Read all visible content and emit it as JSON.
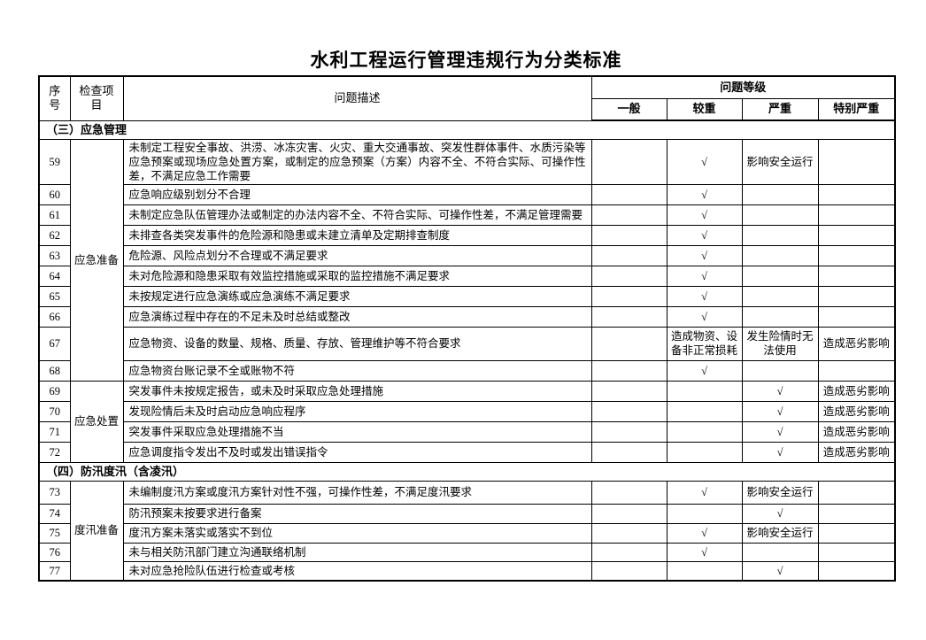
{
  "page": {
    "title": "水利工程运行管理违规行为分类标准"
  },
  "table": {
    "headers": {
      "no": "序号",
      "item": "检查项目",
      "desc": "问题描述",
      "level_group": "问题等级",
      "levels": [
        "一般",
        "较重",
        "严重",
        "特别严重"
      ]
    },
    "check_mark": "√",
    "sections": [
      {
        "label": "（三）应急管理",
        "groups": [
          {
            "item": "应急准备",
            "rows": [
              {
                "no": "59",
                "desc": "未制定工程安全事故、洪涝、冰冻灾害、火灾、重大交通事故、突发性群体事件、水质污染等应急预案或现场应急处置方案，或制定的应急预案（方案）内容不全、不符合实际、可操作性差，不满足应急工作需要",
                "levels": [
                  "",
                  "√",
                  "影响安全运行",
                  ""
                ]
              },
              {
                "no": "60",
                "desc": "应急响应级别划分不合理",
                "levels": [
                  "",
                  "√",
                  "",
                  ""
                ]
              },
              {
                "no": "61",
                "desc": "未制定应急队伍管理办法或制定的办法内容不全、不符合实际、可操作性差，不满足管理需要",
                "levels": [
                  "",
                  "√",
                  "",
                  ""
                ]
              },
              {
                "no": "62",
                "desc": "未排查各类突发事件的危险源和隐患或未建立清单及定期排查制度",
                "levels": [
                  "",
                  "√",
                  "",
                  ""
                ]
              },
              {
                "no": "63",
                "desc": "危险源、风险点划分不合理或不满足要求",
                "levels": [
                  "",
                  "√",
                  "",
                  ""
                ]
              },
              {
                "no": "64",
                "desc": "未对危险源和隐患采取有效监控措施或采取的监控措施不满足要求",
                "levels": [
                  "",
                  "√",
                  "",
                  ""
                ]
              },
              {
                "no": "65",
                "desc": "未按规定进行应急演练或应急演练不满足要求",
                "levels": [
                  "",
                  "√",
                  "",
                  ""
                ]
              },
              {
                "no": "66",
                "desc": "应急演练过程中存在的不足未及时总结或整改",
                "levels": [
                  "",
                  "√",
                  "",
                  ""
                ]
              },
              {
                "no": "67",
                "desc": "应急物资、设备的数量、规格、质量、存放、管理维护等不符合要求",
                "levels": [
                  "",
                  "造成物资、设备非正常损耗",
                  "发生险情时无法使用",
                  "造成恶劣影响"
                ]
              },
              {
                "no": "68",
                "desc": "应急物资台账记录不全或账物不符",
                "levels": [
                  "",
                  "√",
                  "",
                  ""
                ]
              }
            ]
          },
          {
            "item": "应急处置",
            "rows": [
              {
                "no": "69",
                "desc": "突发事件未按规定报告，或未及时采取应急处理措施",
                "levels": [
                  "",
                  "",
                  "√",
                  "造成恶劣影响"
                ]
              },
              {
                "no": "70",
                "desc": "发现险情后未及时启动应急响应程序",
                "levels": [
                  "",
                  "",
                  "√",
                  "造成恶劣影响"
                ]
              },
              {
                "no": "71",
                "desc": "突发事件采取应急处理措施不当",
                "levels": [
                  "",
                  "",
                  "√",
                  "造成恶劣影响"
                ]
              },
              {
                "no": "72",
                "desc": "应急调度指令发出不及时或发出错误指令",
                "levels": [
                  "",
                  "",
                  "√",
                  "造成恶劣影响"
                ]
              }
            ]
          }
        ]
      },
      {
        "label": "（四）防汛度汛（含凌汛）",
        "groups": [
          {
            "item": "度汛准备",
            "rows": [
              {
                "no": "73",
                "desc": "未编制度汛方案或度汛方案针对性不强，可操作性差，不满足度汛要求",
                "levels": [
                  "",
                  "√",
                  "影响安全运行",
                  ""
                ]
              },
              {
                "no": "74",
                "desc": "防汛预案未按要求进行备案",
                "levels": [
                  "",
                  "",
                  "√",
                  ""
                ]
              },
              {
                "no": "75",
                "desc": "度汛方案未落实或落实不到位",
                "levels": [
                  "",
                  "√",
                  "影响安全运行",
                  ""
                ]
              },
              {
                "no": "76",
                "desc": "未与相关防汛部门建立沟通联络机制",
                "levels": [
                  "",
                  "√",
                  "",
                  ""
                ]
              },
              {
                "no": "77",
                "desc": "未对应急抢险队伍进行检查或考核",
                "levels": [
                  "",
                  "",
                  "√",
                  ""
                ]
              }
            ]
          }
        ]
      }
    ]
  }
}
